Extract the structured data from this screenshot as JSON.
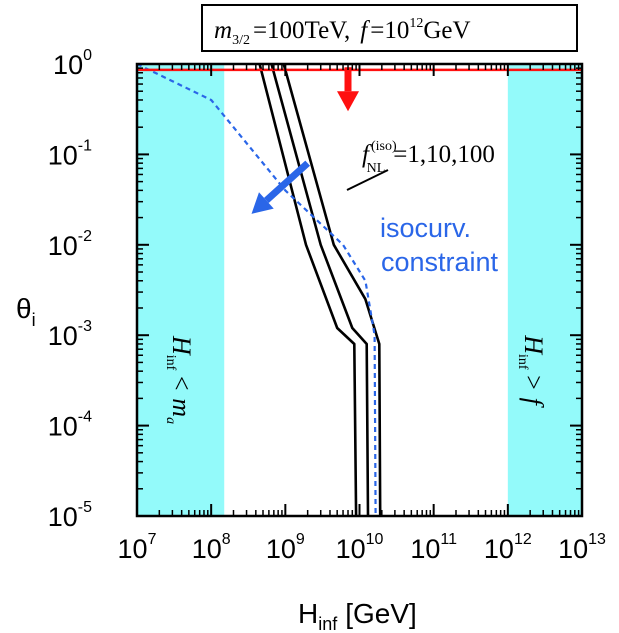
{
  "chart_data": {
    "type": "line",
    "title_box": {
      "m_symbol": "m",
      "m_sub": "3/2",
      "m_value": "=100TeV,",
      "f_symbol": "f",
      "f_value": "=10",
      "f_exp": "12",
      "f_unit": "GeV"
    },
    "x_axis": {
      "label_main": "H",
      "label_sub": "inf",
      "label_unit": "[GeV]",
      "scale": "log",
      "range": [
        10000000.0,
        10000000000000.0
      ],
      "ticks": [
        {
          "base": "10",
          "exp": "7",
          "value": 10000000.0
        },
        {
          "base": "10",
          "exp": "8",
          "value": 100000000.0
        },
        {
          "base": "10",
          "exp": "9",
          "value": 1000000000.0
        },
        {
          "base": "10",
          "exp": "10",
          "value": 10000000000.0
        },
        {
          "base": "10",
          "exp": "11",
          "value": 100000000000.0
        },
        {
          "base": "10",
          "exp": "12",
          "value": 1000000000000.0
        },
        {
          "base": "10",
          "exp": "13",
          "value": 10000000000000.0
        }
      ]
    },
    "y_axis": {
      "label_main": "θ",
      "label_sub": "i",
      "scale": "log",
      "range": [
        1e-05,
        1
      ],
      "ticks": [
        {
          "base": "10",
          "exp": "0",
          "value": 1
        },
        {
          "base": "10",
          "exp": "-1",
          "value": 0.1
        },
        {
          "base": "10",
          "exp": "-2",
          "value": 0.01
        },
        {
          "base": "10",
          "exp": "-3",
          "value": 0.001
        },
        {
          "base": "10",
          "exp": "-4",
          "value": 0.0001
        },
        {
          "base": "10",
          "exp": "-5",
          "value": 1e-05
        }
      ]
    },
    "excluded_regions": [
      {
        "x_from": 10000000.0,
        "x_to": 150000000.0,
        "label_H": "H",
        "label_sub": "inf",
        "label_rel": "< m",
        "label_rel_sub": "a",
        "color": "#93fafa"
      },
      {
        "x_from": 1000000000000.0,
        "x_to": 10000000000000.0,
        "label_H": "H",
        "label_sub": "inf",
        "label_rel": "> f",
        "color": "#93fafa"
      }
    ],
    "series": [
      {
        "style": "solid-black",
        "points": [
          [
            450000000.0,
            1
          ],
          [
            1900000000.0,
            0.01
          ],
          [
            5000000000.0,
            0.0012
          ],
          [
            8500000000.0,
            0.0008
          ],
          [
            9000000000.0,
            1e-05
          ]
        ]
      },
      {
        "style": "solid-black",
        "points": [
          [
            650000000.0,
            1
          ],
          [
            3000000000.0,
            0.01
          ],
          [
            8000000000.0,
            0.0012
          ],
          [
            12500000000.0,
            0.0008
          ],
          [
            13000000000.0,
            1e-05
          ]
        ]
      },
      {
        "style": "solid-black",
        "points": [
          [
            950000000.0,
            1
          ],
          [
            4500000000.0,
            0.01
          ],
          [
            12000000000.0,
            0.0025
          ],
          [
            18500000000.0,
            0.0008
          ],
          [
            19000000000.0,
            1e-05
          ]
        ]
      },
      {
        "style": "dashed-blue",
        "color": "#2a66e8",
        "points": [
          [
            10000000.0,
            1
          ],
          [
            100000000.0,
            0.4
          ],
          [
            1000000000.0,
            0.04
          ],
          [
            6000000000.0,
            0.01
          ],
          [
            12000000000.0,
            0.004
          ],
          [
            16000000000.0,
            0.001
          ],
          [
            16500000000.0,
            1e-05
          ]
        ]
      },
      {
        "style": "solid-red",
        "color": "#ff1010",
        "points": [
          [
            10000000.0,
            0.86
          ],
          [
            10000000000000.0,
            0.86
          ]
        ]
      }
    ],
    "annotations": {
      "fnl_f": "f",
      "fnl_sup": "(iso)",
      "fnl_sub": "NL",
      "fnl_values": "=1,10,100",
      "isocurv_line1": "isocurv.",
      "isocurv_line2": "constraint"
    },
    "arrows": [
      {
        "color": "#ff1010",
        "from": [
          7000000000.0,
          0.92
        ],
        "to": [
          7000000000.0,
          0.3
        ]
      },
      {
        "color": "#2a66e8",
        "from": [
          2000000000.0,
          0.08
        ],
        "to": [
          350000000.0,
          0.022
        ]
      }
    ]
  }
}
